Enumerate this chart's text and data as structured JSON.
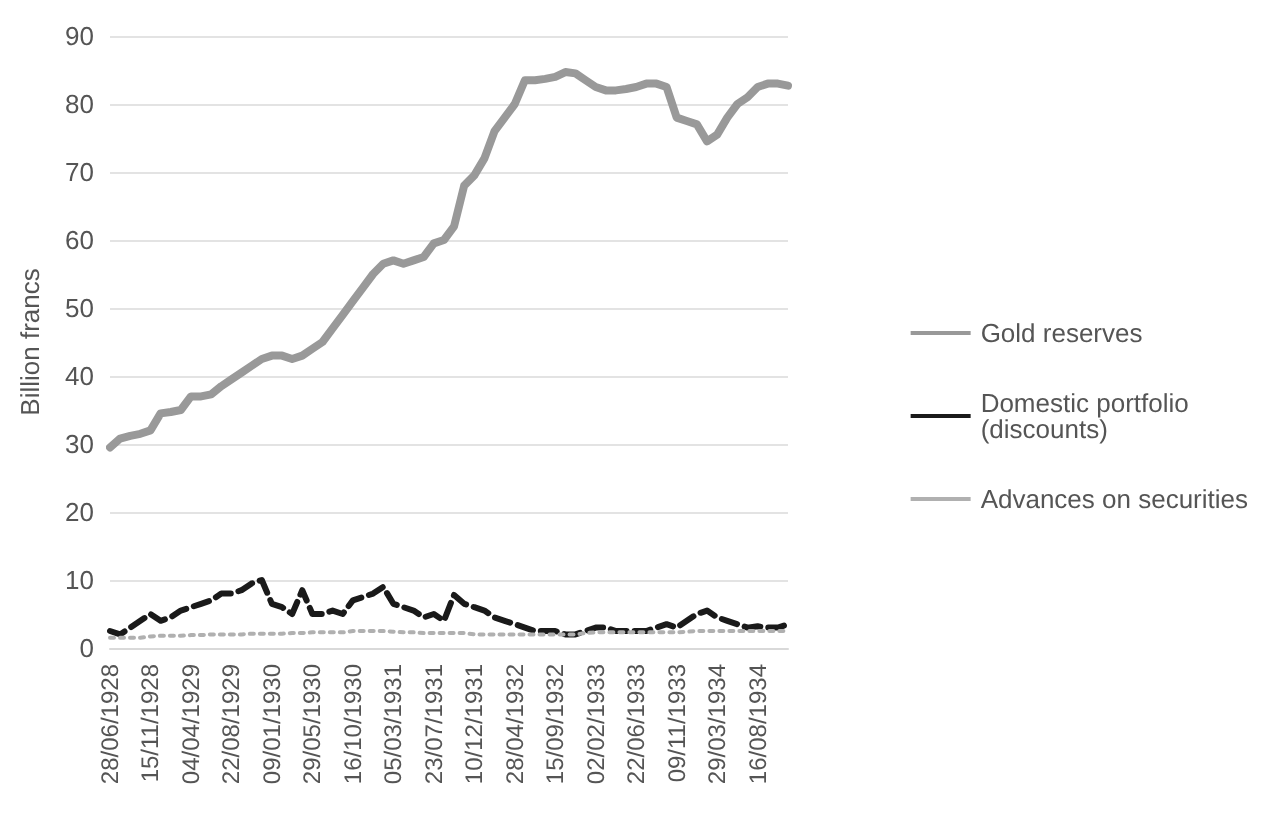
{
  "chart_data": {
    "type": "line",
    "ylabel": "Billion francs",
    "ylim": [
      0,
      90
    ],
    "yticks": [
      0,
      10,
      20,
      30,
      40,
      50,
      60,
      70,
      80,
      90
    ],
    "grid": "y",
    "legend": "right",
    "marker": "none",
    "categories": [
      "28/06/1928",
      null,
      null,
      null,
      "15/11/1928",
      null,
      null,
      null,
      "04/04/1929",
      null,
      null,
      null,
      "22/08/1929",
      null,
      null,
      null,
      "09/01/1930",
      null,
      null,
      null,
      "29/05/1930",
      null,
      null,
      null,
      "16/10/1930",
      null,
      null,
      null,
      "05/03/1931",
      null,
      null,
      null,
      "23/07/1931",
      null,
      null,
      null,
      "10/12/1931",
      null,
      null,
      null,
      "28/04/1932",
      null,
      null,
      null,
      "15/09/1932",
      null,
      null,
      null,
      "02/02/1933",
      null,
      null,
      null,
      "22/06/1933",
      null,
      null,
      null,
      "09/11/1933",
      null,
      null,
      null,
      "29/03/1934",
      null,
      null,
      null,
      "16/08/1934",
      null,
      null,
      null
    ],
    "series": [
      {
        "name": "Gold reserves",
        "color": "#999999",
        "line_style": "solid",
        "values": [
          29.5,
          30.8,
          31.2,
          31.5,
          32,
          34.5,
          34.7,
          35,
          37,
          37,
          37.3,
          38.5,
          39.5,
          40.5,
          41.5,
          42.5,
          43,
          43,
          42.5,
          43,
          44,
          45,
          47,
          49,
          51,
          53,
          55,
          56.5,
          57,
          56.5,
          57,
          57.5,
          59.5,
          60,
          62,
          68,
          69.5,
          72,
          76,
          78,
          80,
          83.5,
          83.5,
          83.7,
          84,
          84.7,
          84.5,
          83.5,
          82.5,
          82,
          82,
          82.2,
          82.5,
          83,
          83,
          82.5,
          78,
          77.5,
          77,
          74.5,
          75.5,
          78,
          80,
          81,
          82.5,
          83,
          83,
          82.7
        ]
      },
      {
        "name": "Domestic portfolio (discounts)",
        "color": "#1a1a1a",
        "line_style": "dashed",
        "values": [
          2.5,
          2,
          3,
          4,
          5,
          4,
          4.5,
          5.5,
          6,
          6.5,
          7,
          8,
          8,
          8.5,
          9.5,
          10,
          6.5,
          6,
          5,
          8.5,
          5,
          5,
          5.5,
          5,
          7,
          7.5,
          8,
          9,
          6.5,
          6,
          5.5,
          4.5,
          5,
          4,
          7.8,
          6.5,
          6,
          5.5,
          4.5,
          4,
          3.5,
          3,
          2.5,
          2.5,
          2.5,
          2,
          2,
          2.5,
          3,
          3,
          2.5,
          2.5,
          2.5,
          2.5,
          3,
          3.5,
          3,
          4,
          5,
          5.5,
          4.5,
          4,
          3.5,
          3,
          3.2,
          3,
          3,
          3.5
        ]
      },
      {
        "name": "Advances on securities",
        "color": "#b0b0b0",
        "line_style": "dotted",
        "values": [
          1.5,
          1.5,
          1.5,
          1.5,
          1.7,
          1.8,
          1.8,
          1.8,
          1.9,
          1.9,
          2,
          2,
          2,
          2,
          2.1,
          2.1,
          2.1,
          2.1,
          2.2,
          2.2,
          2.3,
          2.3,
          2.3,
          2.3,
          2.5,
          2.5,
          2.5,
          2.5,
          2.4,
          2.3,
          2.3,
          2.2,
          2.2,
          2.2,
          2.2,
          2.2,
          2,
          2,
          2,
          2,
          2,
          2,
          2,
          2,
          2,
          2,
          2,
          2.2,
          2.3,
          2.3,
          2.3,
          2.3,
          2.3,
          2.3,
          2.3,
          2.3,
          2.3,
          2.4,
          2.5,
          2.5,
          2.5,
          2.5,
          2.5,
          2.5,
          2.5,
          2.5,
          2.5,
          2.5
        ]
      }
    ]
  }
}
